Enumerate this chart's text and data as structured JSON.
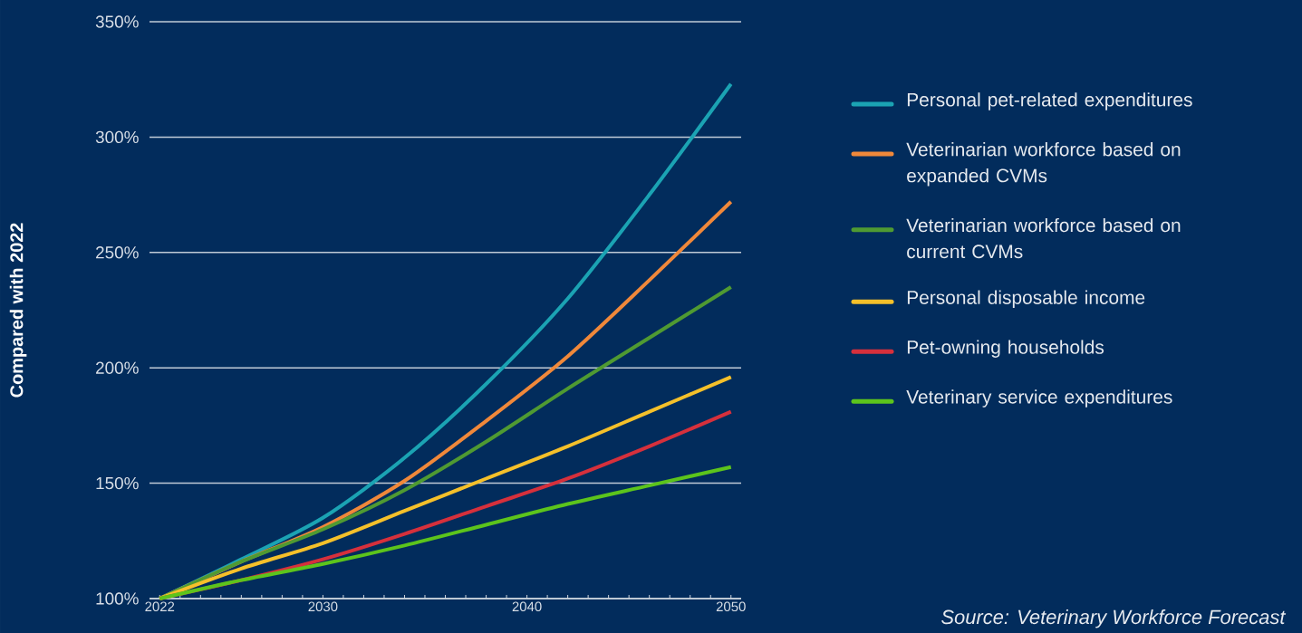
{
  "chart_data": {
    "type": "line",
    "ylabel": "Compared with 2022",
    "annotations": [
      "Source: Veterinary Workforce Forecast"
    ],
    "x": [
      2022,
      2026,
      2030,
      2034,
      2038,
      2042,
      2046,
      2050
    ],
    "series": [
      {
        "name": "Personal pet-related expenditures",
        "color": "#1ba3b3",
        "values": [
          100,
          117,
          135,
          161,
          193,
          230,
          275,
          323
        ]
      },
      {
        "name": "Veterinarian workforce based on expanded CVMs",
        "color": "#f0883a",
        "values": [
          100,
          116,
          131,
          151,
          177,
          205,
          238,
          272
        ]
      },
      {
        "name": "Veterinarian workforce based on current CVMs",
        "color": "#4f9a32",
        "values": [
          100,
          116,
          130,
          147,
          168,
          191,
          213,
          235
        ]
      },
      {
        "name": "Personal disposable income",
        "color": "#f5c02a",
        "values": [
          100,
          113,
          124,
          138,
          152,
          166,
          181,
          196
        ]
      },
      {
        "name": "Pet-owning households",
        "color": "#d6303c",
        "values": [
          100,
          108,
          117,
          128,
          140,
          152,
          166,
          181
        ]
      },
      {
        "name": "Veterinary service expenditures",
        "color": "#5cc41c",
        "values": [
          100,
          108,
          115,
          123,
          132,
          141,
          149,
          157
        ]
      }
    ],
    "xlim": [
      2021.5,
      2050.5
    ],
    "xticks": [
      2022,
      {
        "value": 2023,
        "label": null
      },
      {
        "value": 2024,
        "label": null
      },
      {
        "value": 2025,
        "label": null
      },
      {
        "value": 2026,
        "label": null
      },
      {
        "value": 2027,
        "label": null
      },
      {
        "value": 2028,
        "label": null
      },
      {
        "value": 2029,
        "label": null
      },
      2030,
      {
        "value": 2031,
        "label": null
      },
      {
        "value": 2032,
        "label": null
      },
      {
        "value": 2033,
        "label": null
      },
      {
        "value": 2034,
        "label": null
      },
      {
        "value": 2035,
        "label": null
      },
      {
        "value": 2036,
        "label": null
      },
      {
        "value": 2037,
        "label": null
      },
      {
        "value": 2038,
        "label": null
      },
      {
        "value": 2039,
        "label": null
      },
      2040,
      {
        "value": 2041,
        "label": null
      },
      {
        "value": 2042,
        "label": null
      },
      {
        "value": 2043,
        "label": null
      },
      {
        "value": 2044,
        "label": null
      },
      {
        "value": 2045,
        "label": null
      },
      {
        "value": 2046,
        "label": null
      },
      {
        "value": 2047,
        "label": null
      },
      {
        "value": 2048,
        "label": null
      },
      {
        "value": 2049,
        "label": null
      },
      2050
    ],
    "ylim": [
      100,
      350
    ],
    "yticks": [
      {
        "value": 100,
        "label": "100%"
      },
      {
        "value": 150,
        "label": "150%"
      },
      {
        "value": 200,
        "label": "200%"
      },
      {
        "value": 250,
        "label": "250%"
      },
      {
        "value": 300,
        "label": "300%"
      },
      {
        "value": 350,
        "label": "350%"
      }
    ],
    "grid": "y",
    "legend": "right",
    "marker": "none",
    "line_style": "solid"
  }
}
